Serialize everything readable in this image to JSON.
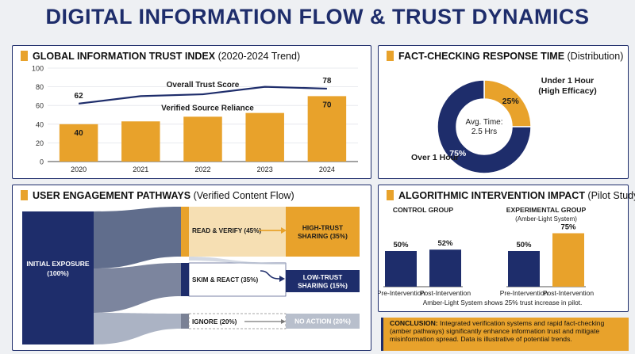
{
  "title": "DIGITAL INFORMATION FLOW & TRUST DYNAMICS",
  "colors": {
    "navy": "#1e2d6b",
    "amber": "#e8a22b",
    "gray": "#8a93a8"
  },
  "panels": {
    "trust_index": {
      "title_bold": "GLOBAL INFORMATION TRUST INDEX",
      "title_rest": " (2020-2024 Trend)"
    },
    "fact_check": {
      "title_bold": "FACT-CHECKING RESPONSE TIME",
      "title_rest": " (Distribution)"
    },
    "engagement": {
      "title_bold": "USER ENGAGEMENT PATHWAYS",
      "title_rest": " (Verified Content Flow)"
    },
    "algorithmic": {
      "title_bold": "ALGORITHMIC INTERVENTION IMPACT",
      "title_rest": " (Pilot Study)"
    }
  },
  "chart_data": [
    {
      "type": "bar",
      "categories": [
        "2020",
        "2021",
        "2022",
        "2023",
        "2024"
      ],
      "series": [
        {
          "name": "Verified Source Reliance",
          "type": "bar",
          "values": [
            40,
            43,
            48,
            52,
            70
          ],
          "labels": [
            "40",
            "",
            "",
            "",
            "70"
          ]
        },
        {
          "name": "Overall Trust Score",
          "type": "line",
          "values": [
            62,
            70,
            72,
            80,
            78
          ],
          "labels": [
            "62",
            "",
            "",
            "",
            "78"
          ]
        }
      ],
      "ylim": [
        0,
        100
      ],
      "yticks": [
        "0",
        "20",
        "40",
        "60",
        "80",
        "100"
      ]
    },
    {
      "type": "pie",
      "slices": [
        {
          "label": "Under 1 Hour (High Efficacy)",
          "label_lines": [
            "Under 1 Hour",
            "(High Efficacy)"
          ],
          "value": 25,
          "pct_text": "25%",
          "color": "#e8a22b"
        },
        {
          "label": "Over 1 Hour",
          "label_lines": [
            "Over 1 Hour"
          ],
          "value": 75,
          "pct_text": "75%",
          "color": "#1e2d6b"
        }
      ],
      "center_lines": [
        "Avg. Time:",
        "2.5 Hrs"
      ]
    },
    {
      "type": "sankey",
      "source": {
        "label_lines": [
          "INITIAL EXPOSURE",
          "(100%)"
        ],
        "value": 100
      },
      "flows": [
        {
          "label": "READ & VERIFY (45%)",
          "value": 45,
          "target_lines": [
            "HIGH-TRUST",
            "SHARING (35%)"
          ],
          "target_value": 35
        },
        {
          "label": "SKIM & REACT (35%)",
          "value": 35,
          "target_lines": [
            "LOW-TRUST",
            "SHARING (15%)"
          ],
          "target_value": 15
        },
        {
          "label": "IGNORE (20%)",
          "value": 20,
          "target_lines": [
            "NO ACTION (20%)"
          ],
          "target_value": 20
        }
      ]
    },
    {
      "type": "bar",
      "groups": [
        {
          "title_lines": [
            "CONTROL GROUP"
          ],
          "categories": [
            "Pre-Intervention",
            "Post-Intervention"
          ],
          "values": [
            50,
            52
          ],
          "labels": [
            "50%",
            "52%"
          ]
        },
        {
          "title_lines": [
            "EXPERIMENTAL GROUP",
            "(Amber-Light System)"
          ],
          "categories": [
            "Pre-Intervention",
            "Post-Intervention"
          ],
          "values": [
            50,
            75
          ],
          "labels": [
            "50%",
            "75%"
          ]
        }
      ],
      "note": "Amber-Light System shows 25% trust increase in pilot."
    }
  ],
  "conclusion": {
    "label": "CONCLUSION:",
    "text": " Integrated verification systems and rapid fact-checking (amber pathways) significantly enhance information trust and mitigate misinformation spread. Data is illustrative of potential trends."
  }
}
